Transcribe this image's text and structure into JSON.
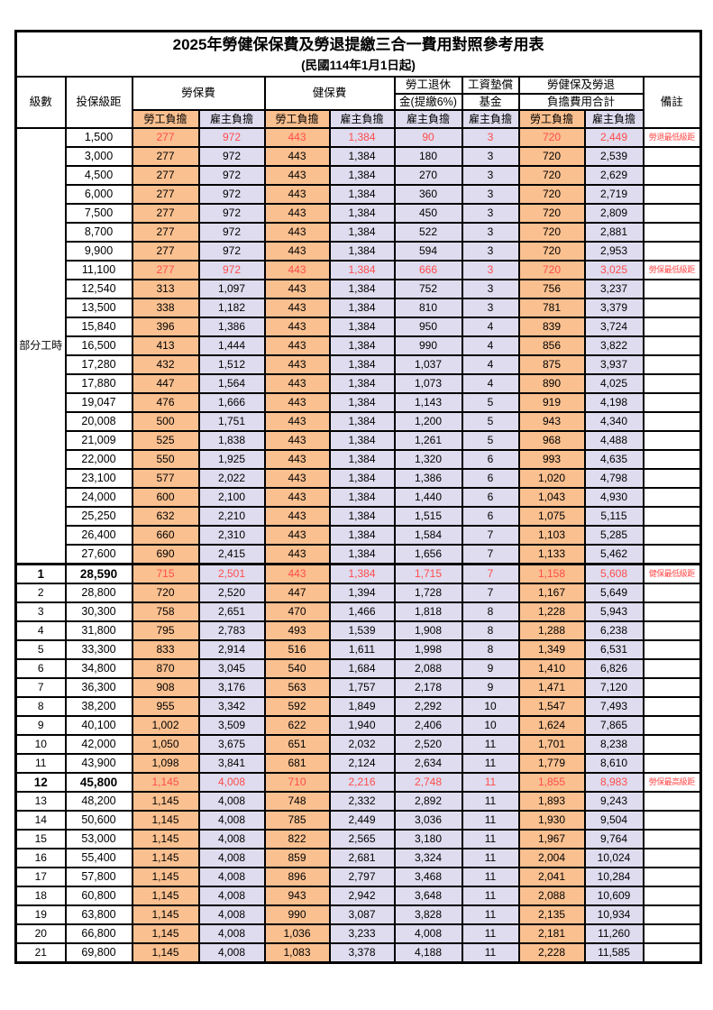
{
  "title": "2025年勞健保保費及勞退提繳三合一費用對照參考用表",
  "subtitle": "(民國114年1月1日起)",
  "header": {
    "level": "級數",
    "bracket": "投保級距",
    "labor_ins": "勞保費",
    "health_ins": "健保費",
    "pension_line1": "勞工退休",
    "pension_line2": "金(提繳6%)",
    "wage_fund_line1": "工資墊償",
    "wage_fund_line2": "基金",
    "total_line1": "勞健保及勞退",
    "total_line2": "負擔費用合計",
    "remark": "備註",
    "employee": "勞工負擔",
    "employer": "雇主負擔"
  },
  "part_time_label": "部分工時",
  "part_time_rowspan": 23,
  "colors": {
    "employee_bg": "#FAC090",
    "employer_bg": "#DEDCEE",
    "red": "#FF4C4C"
  },
  "row_columns": [
    "level",
    "bracket",
    "labor_employee",
    "labor_employer",
    "health_employee",
    "health_employer",
    "pension_employer",
    "fund_employer",
    "total_employee",
    "total_employer",
    "remark",
    "style"
  ],
  "rows": [
    [
      "",
      "1,500",
      "277",
      "972",
      "443",
      "1,384",
      "90",
      "3",
      "720",
      "2,449",
      "勞退最低級距",
      "red"
    ],
    [
      "",
      "3,000",
      "277",
      "972",
      "443",
      "1,384",
      "180",
      "3",
      "720",
      "2,539",
      "",
      ""
    ],
    [
      "",
      "4,500",
      "277",
      "972",
      "443",
      "1,384",
      "270",
      "3",
      "720",
      "2,629",
      "",
      ""
    ],
    [
      "",
      "6,000",
      "277",
      "972",
      "443",
      "1,384",
      "360",
      "3",
      "720",
      "2,719",
      "",
      ""
    ],
    [
      "",
      "7,500",
      "277",
      "972",
      "443",
      "1,384",
      "450",
      "3",
      "720",
      "2,809",
      "",
      ""
    ],
    [
      "",
      "8,700",
      "277",
      "972",
      "443",
      "1,384",
      "522",
      "3",
      "720",
      "2,881",
      "",
      ""
    ],
    [
      "",
      "9,900",
      "277",
      "972",
      "443",
      "1,384",
      "594",
      "3",
      "720",
      "2,953",
      "",
      ""
    ],
    [
      "",
      "11,100",
      "277",
      "972",
      "443",
      "1,384",
      "666",
      "3",
      "720",
      "3,025",
      "勞保最低級距",
      "red"
    ],
    [
      "",
      "12,540",
      "313",
      "1,097",
      "443",
      "1,384",
      "752",
      "3",
      "756",
      "3,237",
      "",
      ""
    ],
    [
      "",
      "13,500",
      "338",
      "1,182",
      "443",
      "1,384",
      "810",
      "3",
      "781",
      "3,379",
      "",
      ""
    ],
    [
      "",
      "15,840",
      "396",
      "1,386",
      "443",
      "1,384",
      "950",
      "4",
      "839",
      "3,724",
      "",
      ""
    ],
    [
      "",
      "16,500",
      "413",
      "1,444",
      "443",
      "1,384",
      "990",
      "4",
      "856",
      "3,822",
      "",
      ""
    ],
    [
      "",
      "17,280",
      "432",
      "1,512",
      "443",
      "1,384",
      "1,037",
      "4",
      "875",
      "3,937",
      "",
      ""
    ],
    [
      "",
      "17,880",
      "447",
      "1,564",
      "443",
      "1,384",
      "1,073",
      "4",
      "890",
      "4,025",
      "",
      ""
    ],
    [
      "",
      "19,047",
      "476",
      "1,666",
      "443",
      "1,384",
      "1,143",
      "5",
      "919",
      "4,198",
      "",
      ""
    ],
    [
      "",
      "20,008",
      "500",
      "1,751",
      "443",
      "1,384",
      "1,200",
      "5",
      "943",
      "4,340",
      "",
      ""
    ],
    [
      "",
      "21,009",
      "525",
      "1,838",
      "443",
      "1,384",
      "1,261",
      "5",
      "968",
      "4,488",
      "",
      ""
    ],
    [
      "",
      "22,000",
      "550",
      "1,925",
      "443",
      "1,384",
      "1,320",
      "6",
      "993",
      "4,635",
      "",
      ""
    ],
    [
      "",
      "23,100",
      "577",
      "2,022",
      "443",
      "1,384",
      "1,386",
      "6",
      "1,020",
      "4,798",
      "",
      ""
    ],
    [
      "",
      "24,000",
      "600",
      "2,100",
      "443",
      "1,384",
      "1,440",
      "6",
      "1,043",
      "4,930",
      "",
      ""
    ],
    [
      "",
      "25,250",
      "632",
      "2,210",
      "443",
      "1,384",
      "1,515",
      "6",
      "1,075",
      "5,115",
      "",
      ""
    ],
    [
      "",
      "26,400",
      "660",
      "2,310",
      "443",
      "1,384",
      "1,584",
      "7",
      "1,103",
      "5,285",
      "",
      ""
    ],
    [
      "",
      "27,600",
      "690",
      "2,415",
      "443",
      "1,384",
      "1,656",
      "7",
      "1,133",
      "5,462",
      "",
      ""
    ],
    [
      "1",
      "28,590",
      "715",
      "2,501",
      "443",
      "1,384",
      "1,715",
      "7",
      "1,158",
      "5,608",
      "健保最低級距",
      "red-bold"
    ],
    [
      "2",
      "28,800",
      "720",
      "2,520",
      "447",
      "1,394",
      "1,728",
      "7",
      "1,167",
      "5,649",
      "",
      ""
    ],
    [
      "3",
      "30,300",
      "758",
      "2,651",
      "470",
      "1,466",
      "1,818",
      "8",
      "1,228",
      "5,943",
      "",
      ""
    ],
    [
      "4",
      "31,800",
      "795",
      "2,783",
      "493",
      "1,539",
      "1,908",
      "8",
      "1,288",
      "6,238",
      "",
      ""
    ],
    [
      "5",
      "33,300",
      "833",
      "2,914",
      "516",
      "1,611",
      "1,998",
      "8",
      "1,349",
      "6,531",
      "",
      ""
    ],
    [
      "6",
      "34,800",
      "870",
      "3,045",
      "540",
      "1,684",
      "2,088",
      "9",
      "1,410",
      "6,826",
      "",
      ""
    ],
    [
      "7",
      "36,300",
      "908",
      "3,176",
      "563",
      "1,757",
      "2,178",
      "9",
      "1,471",
      "7,120",
      "",
      ""
    ],
    [
      "8",
      "38,200",
      "955",
      "3,342",
      "592",
      "1,849",
      "2,292",
      "10",
      "1,547",
      "7,493",
      "",
      ""
    ],
    [
      "9",
      "40,100",
      "1,002",
      "3,509",
      "622",
      "1,940",
      "2,406",
      "10",
      "1,624",
      "7,865",
      "",
      ""
    ],
    [
      "10",
      "42,000",
      "1,050",
      "3,675",
      "651",
      "2,032",
      "2,520",
      "11",
      "1,701",
      "8,238",
      "",
      ""
    ],
    [
      "11",
      "43,900",
      "1,098",
      "3,841",
      "681",
      "2,124",
      "2,634",
      "11",
      "1,779",
      "8,610",
      "",
      ""
    ],
    [
      "12",
      "45,800",
      "1,145",
      "4,008",
      "710",
      "2,216",
      "2,748",
      "11",
      "1,855",
      "8,983",
      "勞保最高級距",
      "red-bold"
    ],
    [
      "13",
      "48,200",
      "1,145",
      "4,008",
      "748",
      "2,332",
      "2,892",
      "11",
      "1,893",
      "9,243",
      "",
      ""
    ],
    [
      "14",
      "50,600",
      "1,145",
      "4,008",
      "785",
      "2,449",
      "3,036",
      "11",
      "1,930",
      "9,504",
      "",
      ""
    ],
    [
      "15",
      "53,000",
      "1,145",
      "4,008",
      "822",
      "2,565",
      "3,180",
      "11",
      "1,967",
      "9,764",
      "",
      ""
    ],
    [
      "16",
      "55,400",
      "1,145",
      "4,008",
      "859",
      "2,681",
      "3,324",
      "11",
      "2,004",
      "10,024",
      "",
      ""
    ],
    [
      "17",
      "57,800",
      "1,145",
      "4,008",
      "896",
      "2,797",
      "3,468",
      "11",
      "2,041",
      "10,284",
      "",
      ""
    ],
    [
      "18",
      "60,800",
      "1,145",
      "4,008",
      "943",
      "2,942",
      "3,648",
      "11",
      "2,088",
      "10,609",
      "",
      ""
    ],
    [
      "19",
      "63,800",
      "1,145",
      "4,008",
      "990",
      "3,087",
      "3,828",
      "11",
      "2,135",
      "10,934",
      "",
      ""
    ],
    [
      "20",
      "66,800",
      "1,145",
      "4,008",
      "1,036",
      "3,233",
      "4,008",
      "11",
      "2,181",
      "11,260",
      "",
      ""
    ],
    [
      "21",
      "69,800",
      "1,145",
      "4,008",
      "1,083",
      "3,378",
      "4,188",
      "11",
      "2,228",
      "11,585",
      "",
      ""
    ]
  ]
}
